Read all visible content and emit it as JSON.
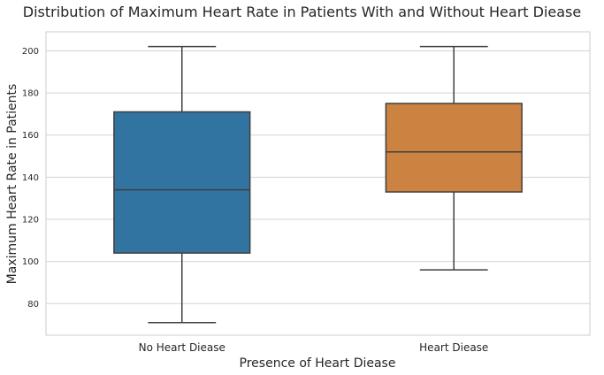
{
  "chart_data": {
    "type": "box",
    "title": "Distribution of Maximum Heart Rate in Patients With and Without Heart Diease",
    "xlabel": "Presence of Heart Diease",
    "ylabel": "Maximum Heart Rate in Patients",
    "categories": [
      "No Heart Diease",
      "Heart Diease"
    ],
    "boxes": [
      {
        "category": "No Heart Diease",
        "min": 71,
        "q1": 104,
        "median": 134,
        "q3": 171,
        "max": 202,
        "color": "#3274a1"
      },
      {
        "category": "Heart Diease",
        "min": 96,
        "q1": 133,
        "median": 152,
        "q3": 175,
        "max": 202,
        "color": "#cc8240"
      }
    ],
    "yticks": [
      80,
      100,
      120,
      140,
      160,
      180,
      200
    ],
    "ylim": [
      65,
      209
    ],
    "grid": true,
    "colors": {
      "grid": "#d4d4d4",
      "axis": "#cccccc",
      "line": "#3f3f3f"
    }
  }
}
